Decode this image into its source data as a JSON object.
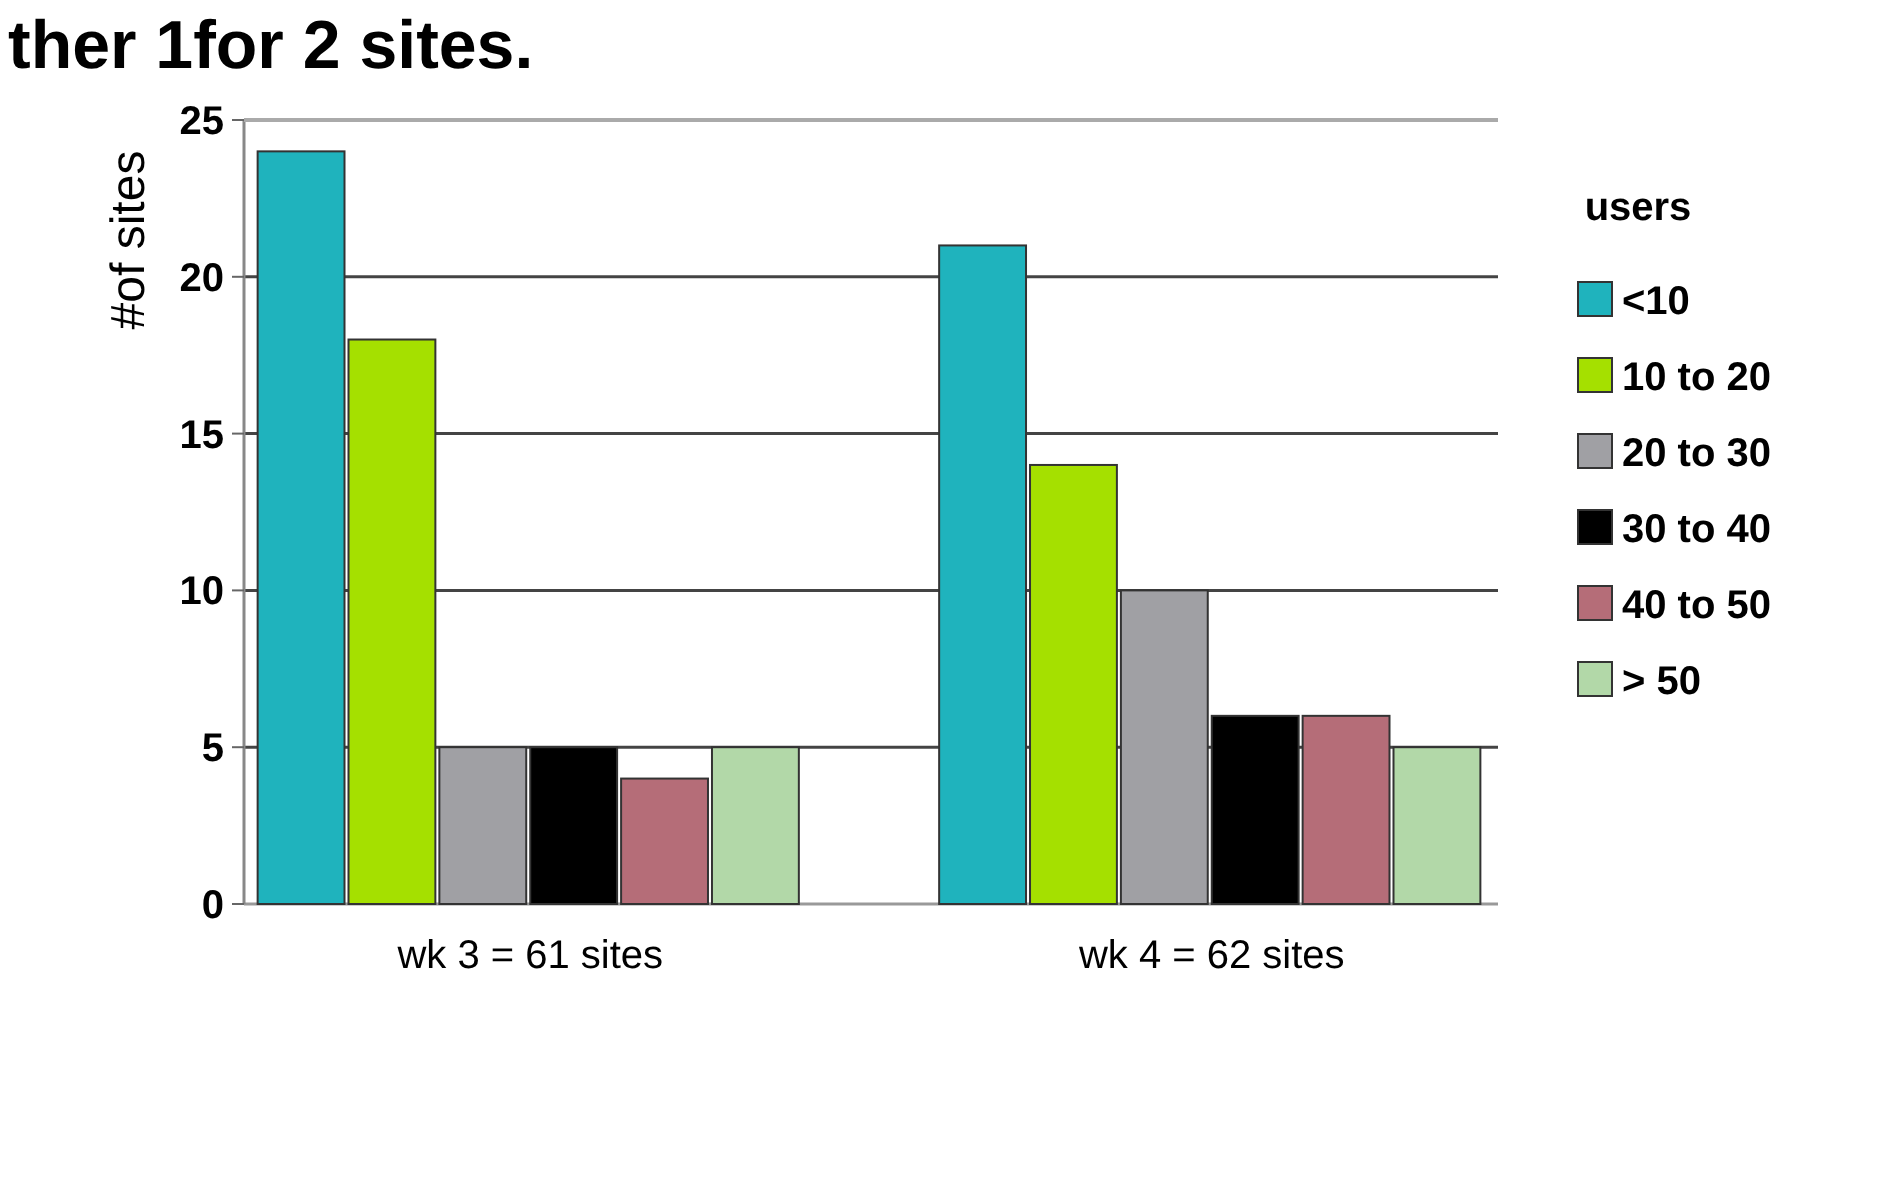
{
  "chart_data": {
    "type": "bar",
    "title": "ther 1for 2 sites.",
    "ylabel": "#of sites",
    "legend_title": "users",
    "categories": [
      "wk 3 = 61 sites",
      "wk 4 = 62 sites"
    ],
    "series": [
      {
        "name": "<10",
        "color": "#1fb3bd",
        "values": [
          24,
          21
        ]
      },
      {
        "name": "10 to 20",
        "color": "#a5e000",
        "values": [
          18,
          14
        ]
      },
      {
        "name": "20 to 30",
        "color": "#a0a0a4",
        "values": [
          5,
          10
        ]
      },
      {
        "name": "30 to 40",
        "color": "#000000",
        "values": [
          5,
          6
        ]
      },
      {
        "name": "40 to 50",
        "color": "#b56d78",
        "values": [
          4,
          6
        ]
      },
      {
        "name": "> 50",
        "color": "#b2d8a8",
        "values": [
          5,
          5
        ]
      }
    ],
    "ylim": [
      0,
      25
    ],
    "yticks": [
      0,
      5,
      10,
      15,
      20,
      25
    ],
    "grid": "y",
    "legend": "right"
  }
}
